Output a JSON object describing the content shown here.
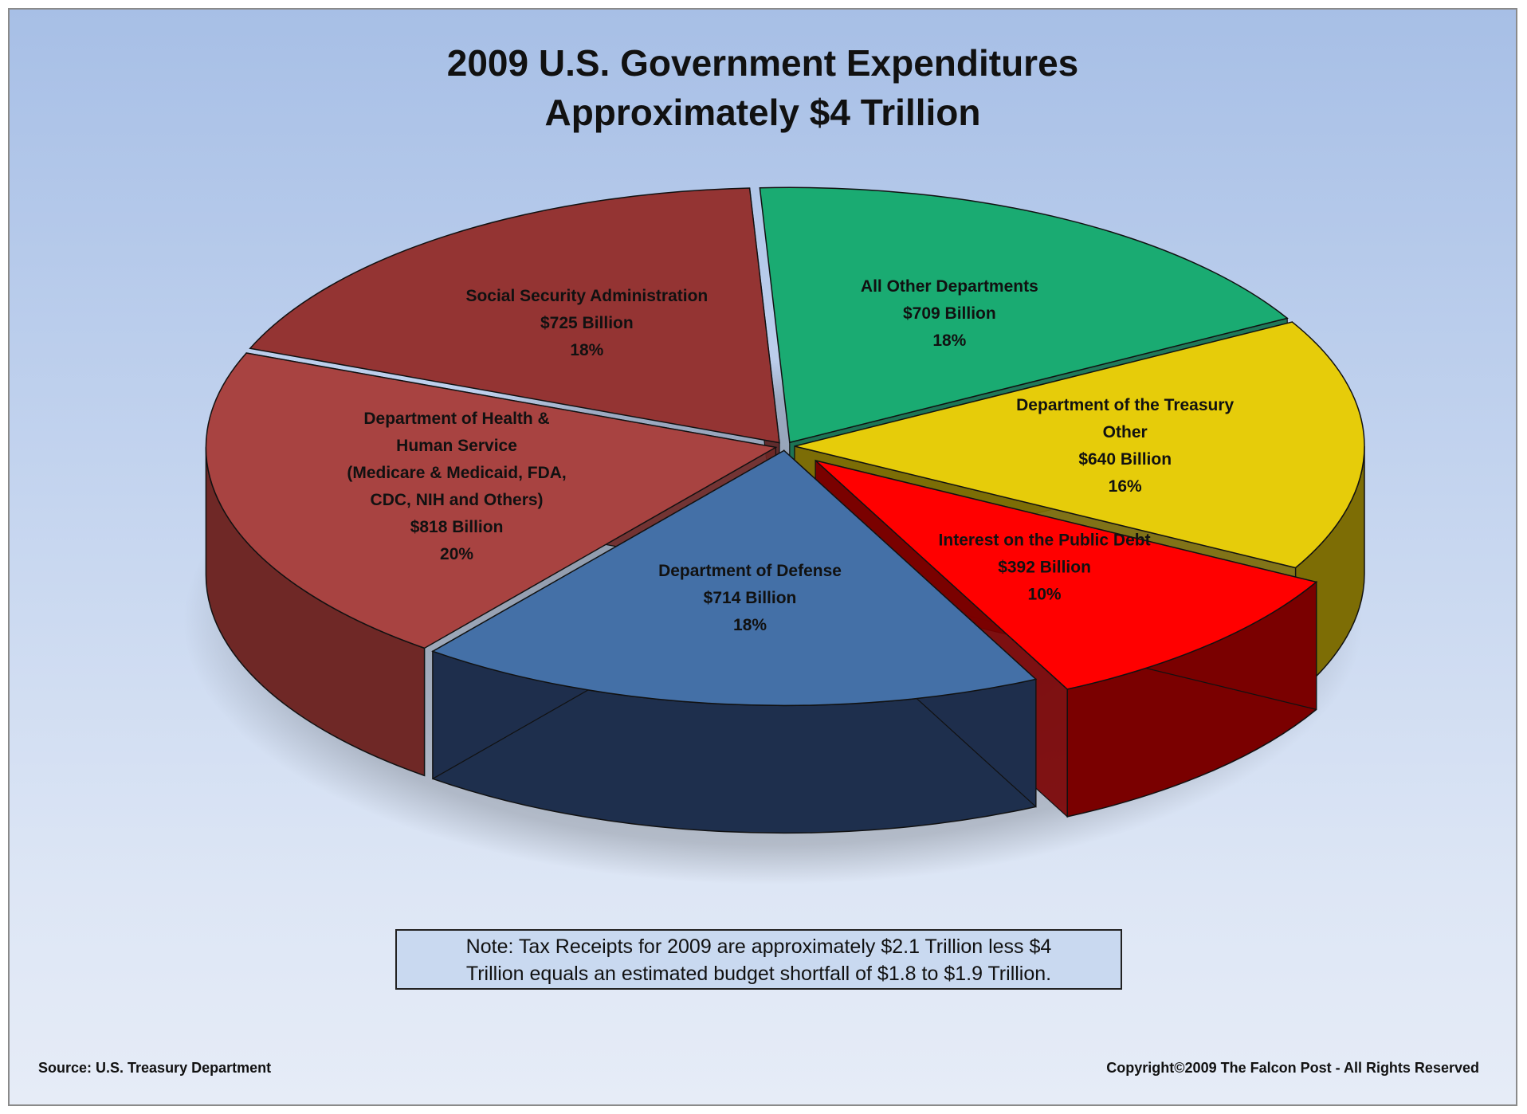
{
  "chart": {
    "title_line1": "2009 U.S. Government Expenditures",
    "title_line2": "Approximately $4 Trillion",
    "note_line1": "Note:  Tax Receipts for 2009 are approximately $2.1 Trillion less $4",
    "note_line2": "Trillion equals an estimated budget shortfall of $1.8 to $1.9 Trillion.",
    "source": "Source: U.S. Treasury Department",
    "copyright": "Copyright©2009 The Falcon Post - All Rights Reserved"
  },
  "chart_data": {
    "type": "pie",
    "title": "2009 U.S. Government Expenditures Approximately $4 Trillion",
    "unit": "Billion",
    "slices": [
      {
        "name": "All Other Departments",
        "label_lines": [
          "All Other Departments",
          "$709 Billion",
          "18%"
        ],
        "value": 709,
        "percent": 18,
        "color": "#1aab72",
        "side_color": "#0f6f49"
      },
      {
        "name": "Department of the Treasury Other",
        "label_lines": [
          "Department of the Treasury",
          "Other",
          "$640 Billion",
          "16%"
        ],
        "value": 640,
        "percent": 16,
        "color": "#e6cc0a",
        "side_color": "#7d6d05"
      },
      {
        "name": "Interest on the Public Debt",
        "label_lines": [
          "Interest on the Public Debt",
          "$392 Billion",
          "10%"
        ],
        "value": 392,
        "percent": 10,
        "color": "#ff0000",
        "side_color": "#7a0000"
      },
      {
        "name": "Department of Defense",
        "label_lines": [
          "Department of Defense",
          "$714 Billion",
          "18%"
        ],
        "value": 714,
        "percent": 18,
        "color": "#4470a7",
        "side_color": "#1e2f4d"
      },
      {
        "name": "Department of Health & Human Service",
        "label_lines": [
          "Department of Health &",
          "Human Service",
          "(Medicare & Medicaid, FDA,",
          "CDC, NIH and Others)",
          "$818 Billion",
          "20%"
        ],
        "value": 818,
        "percent": 20,
        "color": "#a84341",
        "side_color": "#6f2826"
      },
      {
        "name": "Social Security Administration",
        "label_lines": [
          "Social Security Administration",
          "$725 Billion",
          "18%"
        ],
        "value": 725,
        "percent": 18,
        "color": "#943433",
        "side_color": "#5a1f1e"
      }
    ],
    "exploded": [
      "Interest on the Public Debt"
    ],
    "legend": "none",
    "style": "3d-exploded"
  }
}
